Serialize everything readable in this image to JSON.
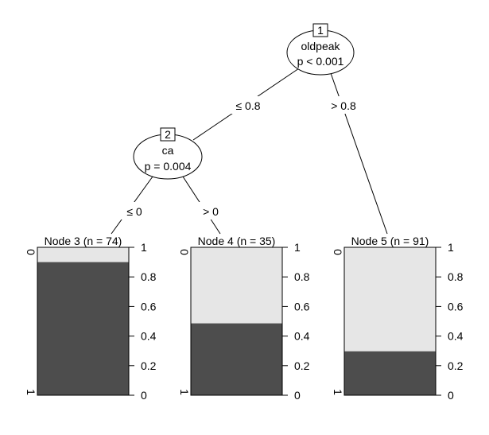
{
  "chart_data": {
    "type": "decision-tree",
    "edge_labels": {
      "e1_2": "≤ 0.8",
      "e1_5": "> 0.8",
      "e2_3": "≤ 0",
      "e2_4": "> 0"
    },
    "inner_nodes": [
      {
        "id": "1",
        "variable": "oldpeak",
        "p": "p < 0.001"
      },
      {
        "id": "2",
        "variable": "ca",
        "p": "p = 0.004"
      }
    ],
    "terminal_nodes": [
      {
        "id": "3",
        "title": "Node 3 (n = 74)",
        "n": 74,
        "proportion_class_1": 0.9
      },
      {
        "id": "4",
        "title": "Node 4 (n = 35)",
        "n": 35,
        "proportion_class_1": 0.486
      },
      {
        "id": "5",
        "title": "Node 5 (n = 91)",
        "n": 91,
        "proportion_class_1": 0.297
      }
    ],
    "class_labels": [
      "0",
      "1"
    ],
    "y_ticks": [
      "0",
      "0.2",
      "0.4",
      "0.6",
      "0.8",
      "1"
    ],
    "colors": {
      "class_0": "#e6e6e6",
      "class_1": "#4d4d4d"
    }
  }
}
